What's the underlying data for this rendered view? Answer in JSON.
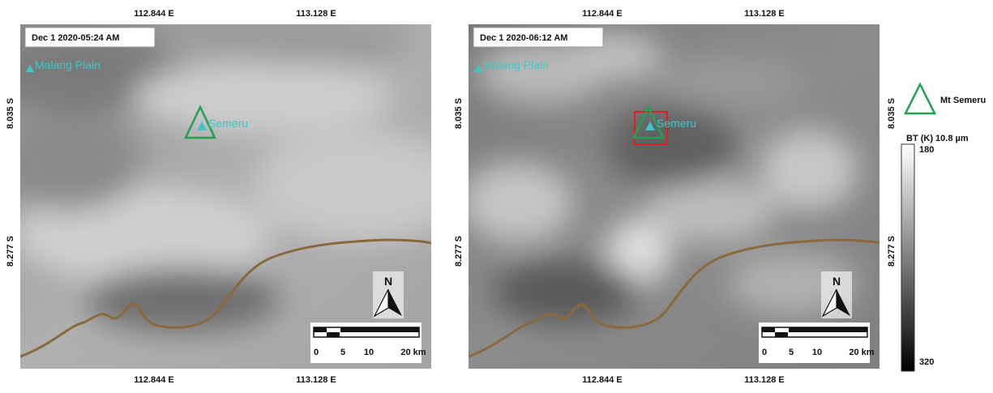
{
  "panels": [
    {
      "timestamp": "Dec 1 2020-05:24 AM",
      "top_labels": [
        "112.844 E",
        "113.128 E"
      ],
      "bottom_labels": [
        "112.844 E",
        "113.128 E"
      ],
      "left_labels": [
        "8.035 S",
        "8.277 S"
      ],
      "places": [
        "Malang Plain",
        "Semeru"
      ],
      "north": "N",
      "scale_labels": [
        "0",
        "5",
        "10",
        "20 km"
      ]
    },
    {
      "timestamp": "Dec 1 2020-06:12 AM",
      "top_labels": [
        "112.844 E",
        "113.128 E"
      ],
      "bottom_labels": [
        "112.844 E",
        "113.128 E"
      ],
      "left_labels": [
        "8.035 S",
        "8.277 S"
      ],
      "right_labels": [
        "8.035 S",
        "8.277 S"
      ],
      "places": [
        "Malang Plain",
        "Semeru"
      ],
      "north": "N",
      "scale_labels": [
        "0",
        "5",
        "10",
        "20 km"
      ]
    }
  ],
  "legend": {
    "marker_label": "Mt Semeru",
    "colorbar_title": "BT (K) 10.8 µm",
    "colorbar_min": 180,
    "colorbar_max": 320
  }
}
